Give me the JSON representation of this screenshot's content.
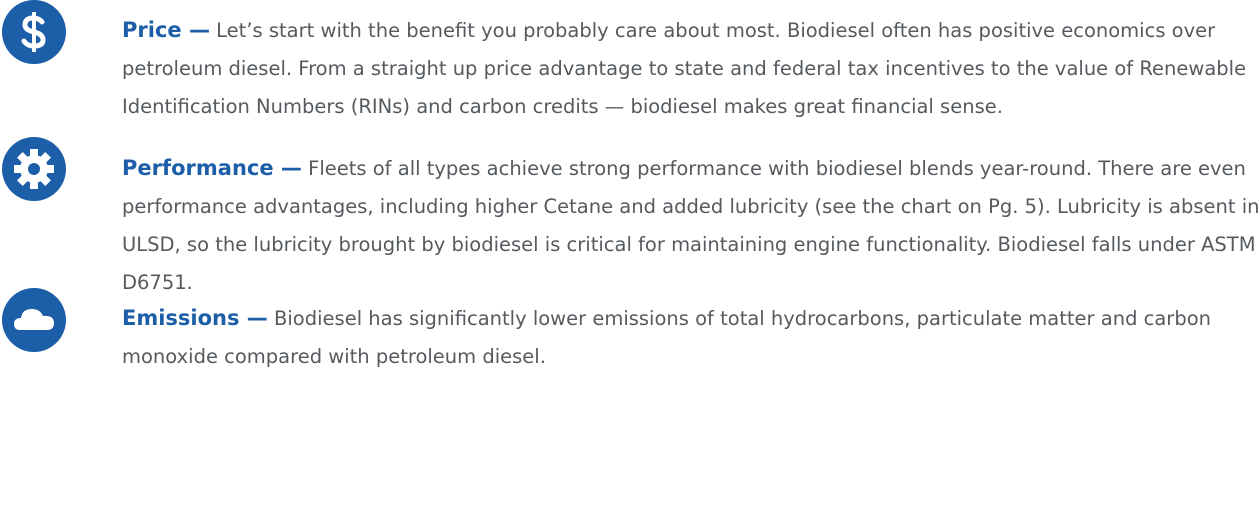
{
  "items": [
    {
      "title": "Price —",
      "text": "Let’s start with the benefit you probably care about most. Biodiesel often has positive economics over petroleum diesel. From a straight up price advantage to state and federal tax incentives to the value of Renewable Identification Numbers (RINs) and carbon credits — biodiesel makes great financial sense."
    },
    {
      "title": "Performance —",
      "text": "Fleets of all types achieve strong performance with biodiesel blends year-round. There are even performance advantages, including higher Cetane and added lubricity (see the chart on Pg. 5). Lubricity is absent in ULSD, so the lubricity brought by biodiesel is critical for maintaining engine functionality. Biodiesel falls under ASTM D6751."
    },
    {
      "title": "Emissions —",
      "text": "Biodiesel has significantly lower emissions of total hydrocarbons, particulate matter and carbon monoxide compared with petroleum diesel."
    }
  ]
}
